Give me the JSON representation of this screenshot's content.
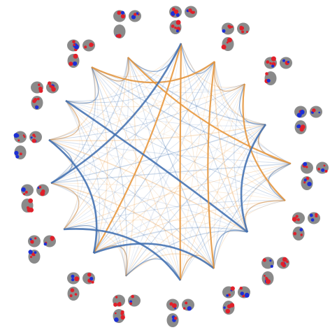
{
  "figure": {
    "type": "connectogram",
    "node_count": 17,
    "background": "#ffffff"
  },
  "colors": {
    "positive_edge": "#e8953a",
    "negative_edge": "#3f6fb0",
    "brain_gray": "#8a8a8a",
    "brain_gray_dark": "#6e6e6e",
    "activation_red": "#e0202a",
    "activation_blue": "#1c2fd6"
  },
  "strong_edges": [
    {
      "from": 0,
      "to": 7,
      "sign": "positive"
    },
    {
      "from": 0,
      "to": 9,
      "sign": "positive"
    },
    {
      "from": 4,
      "to": 7,
      "sign": "negative"
    },
    {
      "from": 6,
      "to": 9,
      "sign": "negative"
    },
    {
      "from": 7,
      "to": 10,
      "sign": "negative"
    },
    {
      "from": 3,
      "to": 11,
      "sign": "negative"
    },
    {
      "from": 2,
      "to": 16,
      "sign": "positive"
    },
    {
      "from": 1,
      "to": 13,
      "sign": "positive"
    },
    {
      "from": 16,
      "to": 10,
      "sign": "positive"
    },
    {
      "from": 15,
      "to": 12,
      "sign": "positive"
    },
    {
      "from": 14,
      "to": 11,
      "sign": "negative"
    },
    {
      "from": 5,
      "to": 0,
      "sign": "negative"
    }
  ]
}
